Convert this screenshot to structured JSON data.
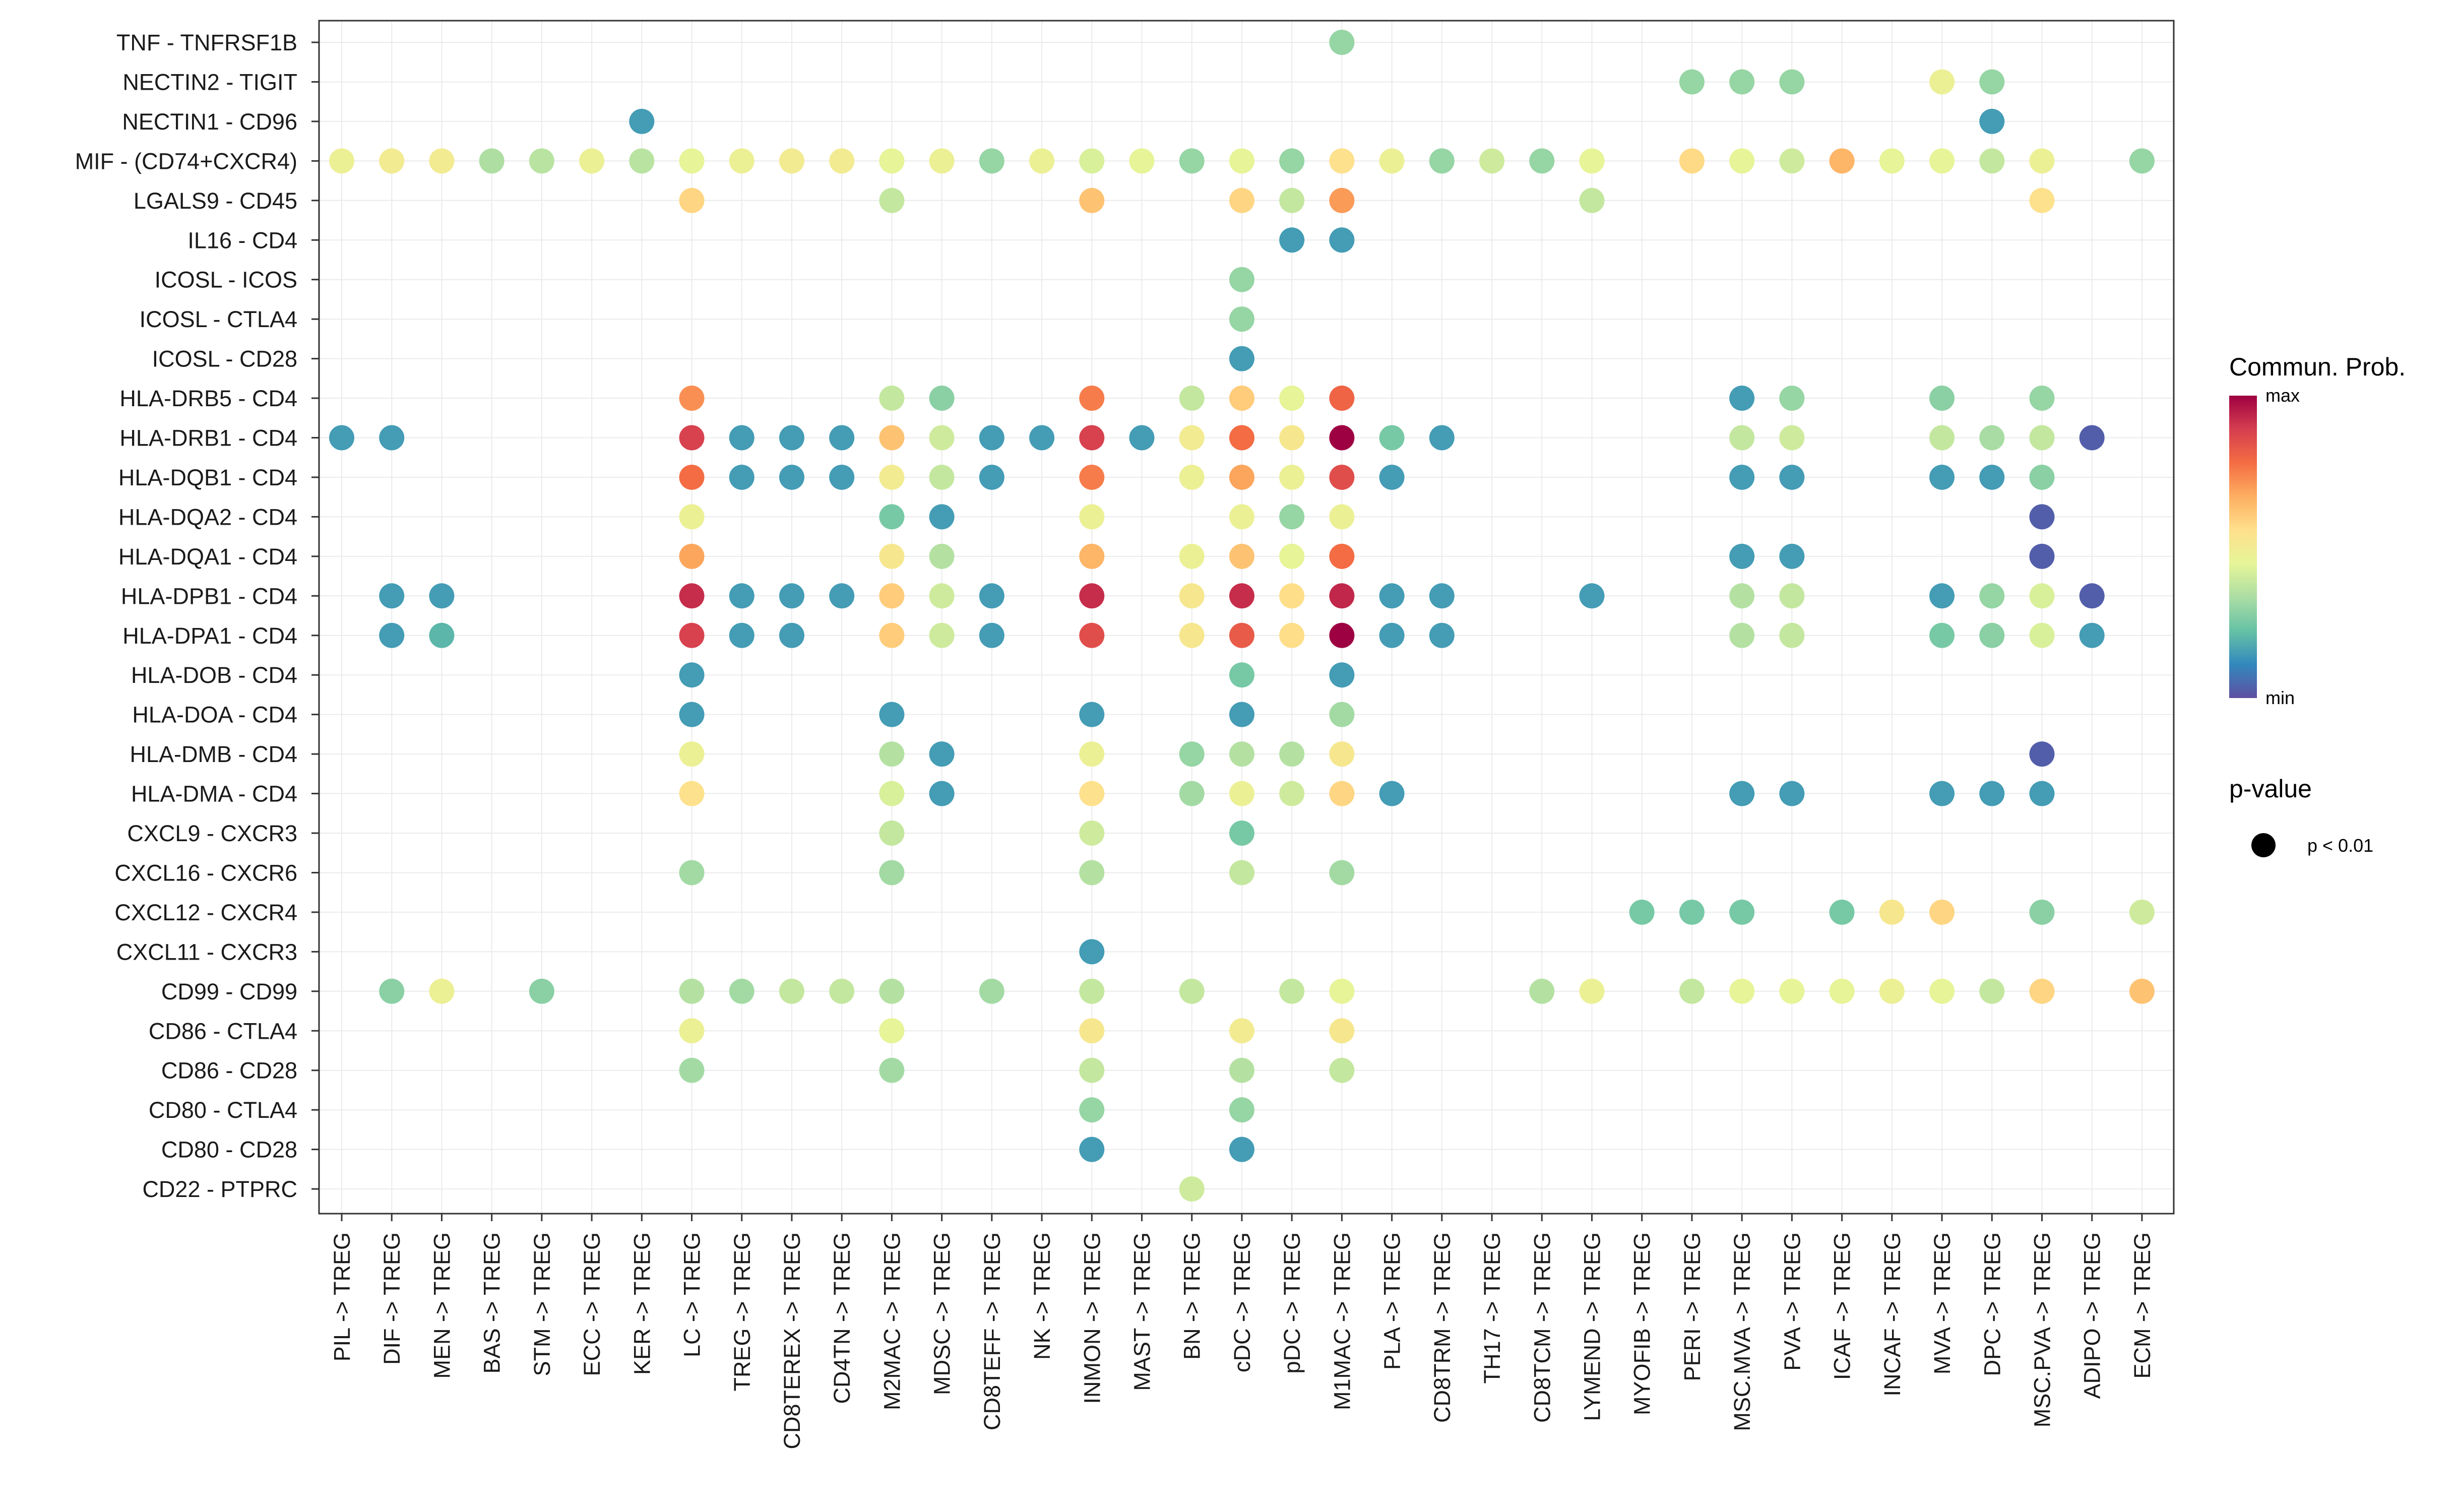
{
  "chart_data": {
    "type": "dot-plot",
    "y_labels": [
      "TNF - TNFRSF1B",
      "NECTIN2 - TIGIT",
      "NECTIN1 - CD96",
      "MIF - (CD74+CXCR4)",
      "LGALS9 - CD45",
      "IL16 - CD4",
      "ICOSL - ICOS",
      "ICOSL - CTLA4",
      "ICOSL - CD28",
      "HLA-DRB5 - CD4",
      "HLA-DRB1 - CD4",
      "HLA-DQB1 - CD4",
      "HLA-DQA2 - CD4",
      "HLA-DQA1 - CD4",
      "HLA-DPB1 - CD4",
      "HLA-DPA1 - CD4",
      "HLA-DOB - CD4",
      "HLA-DOA - CD4",
      "HLA-DMB - CD4",
      "HLA-DMA - CD4",
      "CXCL9 - CXCR3",
      "CXCL16 - CXCR6",
      "CXCL12 - CXCR4",
      "CXCL11 - CXCR3",
      "CD99 - CD99",
      "CD86 - CTLA4",
      "CD86 - CD28",
      "CD80 - CTLA4",
      "CD80 - CD28",
      "CD22 - PTPRC"
    ],
    "x_labels": [
      "PIL -> TREG",
      "DIF -> TREG",
      "MEN -> TREG",
      "BAS -> TREG",
      "STM -> TREG",
      "ECC -> TREG",
      "KER -> TREG",
      "LC -> TREG",
      "TREG -> TREG",
      "CD8TEREX -> TREG",
      "CD4TN -> TREG",
      "M2MAC -> TREG",
      "MDSC -> TREG",
      "CD8TEFF -> TREG",
      "NK -> TREG",
      "INMON -> TREG",
      "MAST -> TREG",
      "BN -> TREG",
      "cDC -> TREG",
      "pDC -> TREG",
      "M1MAC -> TREG",
      "PLA -> TREG",
      "CD8TRM -> TREG",
      "TH17 -> TREG",
      "CD8TCM -> TREG",
      "LYMEND -> TREG",
      "MYOFIB -> TREG",
      "PERI -> TREG",
      "MSC.MVA -> TREG",
      "PVA -> TREG",
      "ICAF -> TREG",
      "INCAF -> TREG",
      "MVA -> TREG",
      "DPC -> TREG",
      "MSC.PVA -> TREG",
      "ADIPO -> TREG",
      "ECM -> TREG"
    ],
    "points_note": "Each point: [x_index, y_index, relative communication probability 0 (min) .. 1 (max)]",
    "points": [
      [
        20,
        0,
        0.3
      ],
      [
        27,
        1,
        0.3
      ],
      [
        28,
        1,
        0.3
      ],
      [
        29,
        1,
        0.3
      ],
      [
        32,
        1,
        0.47
      ],
      [
        33,
        1,
        0.3
      ],
      [
        6,
        2,
        0.15
      ],
      [
        33,
        2,
        0.15
      ],
      [
        0,
        3,
        0.47
      ],
      [
        1,
        3,
        0.5
      ],
      [
        2,
        3,
        0.5
      ],
      [
        3,
        3,
        0.34
      ],
      [
        4,
        3,
        0.36
      ],
      [
        5,
        3,
        0.47
      ],
      [
        6,
        3,
        0.36
      ],
      [
        7,
        3,
        0.45
      ],
      [
        8,
        3,
        0.47
      ],
      [
        9,
        3,
        0.5
      ],
      [
        10,
        3,
        0.5
      ],
      [
        11,
        3,
        0.45
      ],
      [
        12,
        3,
        0.47
      ],
      [
        13,
        3,
        0.3
      ],
      [
        14,
        3,
        0.47
      ],
      [
        15,
        3,
        0.42
      ],
      [
        16,
        3,
        0.45
      ],
      [
        17,
        3,
        0.3
      ],
      [
        18,
        3,
        0.45
      ],
      [
        19,
        3,
        0.3
      ],
      [
        20,
        3,
        0.55
      ],
      [
        21,
        3,
        0.47
      ],
      [
        22,
        3,
        0.3
      ],
      [
        23,
        3,
        0.4
      ],
      [
        24,
        3,
        0.3
      ],
      [
        25,
        3,
        0.45
      ],
      [
        27,
        3,
        0.57
      ],
      [
        28,
        3,
        0.45
      ],
      [
        29,
        3,
        0.4
      ],
      [
        30,
        3,
        0.65
      ],
      [
        31,
        3,
        0.45
      ],
      [
        32,
        3,
        0.45
      ],
      [
        33,
        3,
        0.38
      ],
      [
        34,
        3,
        0.47
      ],
      [
        36,
        3,
        0.3
      ],
      [
        7,
        4,
        0.58
      ],
      [
        11,
        4,
        0.38
      ],
      [
        15,
        4,
        0.62
      ],
      [
        18,
        4,
        0.58
      ],
      [
        19,
        4,
        0.38
      ],
      [
        20,
        4,
        0.7
      ],
      [
        25,
        4,
        0.38
      ],
      [
        34,
        4,
        0.55
      ],
      [
        19,
        5,
        0.15
      ],
      [
        20,
        5,
        0.15
      ],
      [
        18,
        6,
        0.3
      ],
      [
        18,
        7,
        0.3
      ],
      [
        18,
        8,
        0.15
      ],
      [
        7,
        9,
        0.72
      ],
      [
        11,
        9,
        0.38
      ],
      [
        12,
        9,
        0.28
      ],
      [
        15,
        9,
        0.75
      ],
      [
        17,
        9,
        0.38
      ],
      [
        18,
        9,
        0.6
      ],
      [
        19,
        9,
        0.45
      ],
      [
        20,
        9,
        0.8
      ],
      [
        28,
        9,
        0.15
      ],
      [
        29,
        9,
        0.3
      ],
      [
        32,
        9,
        0.28
      ],
      [
        34,
        9,
        0.3
      ],
      [
        0,
        10,
        0.15
      ],
      [
        1,
        10,
        0.15
      ],
      [
        7,
        10,
        0.88
      ],
      [
        8,
        10,
        0.15
      ],
      [
        9,
        10,
        0.15
      ],
      [
        10,
        10,
        0.15
      ],
      [
        11,
        10,
        0.62
      ],
      [
        12,
        10,
        0.4
      ],
      [
        13,
        10,
        0.15
      ],
      [
        14,
        10,
        0.15
      ],
      [
        15,
        10,
        0.88
      ],
      [
        16,
        10,
        0.15
      ],
      [
        17,
        10,
        0.5
      ],
      [
        18,
        10,
        0.78
      ],
      [
        19,
        10,
        0.52
      ],
      [
        20,
        10,
        1.0
      ],
      [
        21,
        10,
        0.25
      ],
      [
        22,
        10,
        0.15
      ],
      [
        28,
        10,
        0.38
      ],
      [
        29,
        10,
        0.4
      ],
      [
        32,
        10,
        0.38
      ],
      [
        33,
        10,
        0.33
      ],
      [
        34,
        10,
        0.38
      ],
      [
        35,
        10,
        0.03
      ],
      [
        7,
        11,
        0.78
      ],
      [
        8,
        11,
        0.15
      ],
      [
        9,
        11,
        0.15
      ],
      [
        10,
        11,
        0.15
      ],
      [
        11,
        11,
        0.5
      ],
      [
        12,
        11,
        0.38
      ],
      [
        13,
        11,
        0.15
      ],
      [
        15,
        11,
        0.75
      ],
      [
        17,
        11,
        0.47
      ],
      [
        18,
        11,
        0.68
      ],
      [
        19,
        11,
        0.47
      ],
      [
        20,
        11,
        0.85
      ],
      [
        21,
        11,
        0.15
      ],
      [
        28,
        11,
        0.15
      ],
      [
        29,
        11,
        0.15
      ],
      [
        32,
        11,
        0.15
      ],
      [
        33,
        11,
        0.15
      ],
      [
        34,
        11,
        0.28
      ],
      [
        7,
        12,
        0.47
      ],
      [
        11,
        12,
        0.25
      ],
      [
        12,
        12,
        0.15
      ],
      [
        15,
        12,
        0.47
      ],
      [
        18,
        12,
        0.47
      ],
      [
        19,
        12,
        0.3
      ],
      [
        20,
        12,
        0.47
      ],
      [
        34,
        12,
        0.03
      ],
      [
        7,
        13,
        0.68
      ],
      [
        11,
        13,
        0.52
      ],
      [
        12,
        13,
        0.35
      ],
      [
        15,
        13,
        0.65
      ],
      [
        17,
        13,
        0.47
      ],
      [
        18,
        13,
        0.62
      ],
      [
        19,
        13,
        0.45
      ],
      [
        20,
        13,
        0.78
      ],
      [
        28,
        13,
        0.15
      ],
      [
        29,
        13,
        0.15
      ],
      [
        34,
        13,
        0.03
      ],
      [
        1,
        14,
        0.15
      ],
      [
        2,
        14,
        0.15
      ],
      [
        7,
        14,
        0.92
      ],
      [
        8,
        14,
        0.15
      ],
      [
        9,
        14,
        0.15
      ],
      [
        10,
        14,
        0.15
      ],
      [
        11,
        14,
        0.6
      ],
      [
        12,
        14,
        0.4
      ],
      [
        13,
        14,
        0.15
      ],
      [
        15,
        14,
        0.92
      ],
      [
        17,
        14,
        0.52
      ],
      [
        18,
        14,
        0.92
      ],
      [
        19,
        14,
        0.56
      ],
      [
        20,
        14,
        0.93
      ],
      [
        21,
        14,
        0.15
      ],
      [
        22,
        14,
        0.15
      ],
      [
        25,
        14,
        0.15
      ],
      [
        28,
        14,
        0.35
      ],
      [
        29,
        14,
        0.38
      ],
      [
        32,
        14,
        0.15
      ],
      [
        33,
        14,
        0.3
      ],
      [
        34,
        14,
        0.42
      ],
      [
        35,
        14,
        0.03
      ],
      [
        1,
        15,
        0.15
      ],
      [
        2,
        15,
        0.2
      ],
      [
        7,
        15,
        0.88
      ],
      [
        8,
        15,
        0.15
      ],
      [
        9,
        15,
        0.15
      ],
      [
        11,
        15,
        0.6
      ],
      [
        12,
        15,
        0.4
      ],
      [
        13,
        15,
        0.15
      ],
      [
        15,
        15,
        0.85
      ],
      [
        17,
        15,
        0.52
      ],
      [
        18,
        15,
        0.82
      ],
      [
        19,
        15,
        0.56
      ],
      [
        20,
        15,
        1.0
      ],
      [
        21,
        15,
        0.15
      ],
      [
        22,
        15,
        0.15
      ],
      [
        28,
        15,
        0.35
      ],
      [
        29,
        15,
        0.38
      ],
      [
        32,
        15,
        0.25
      ],
      [
        33,
        15,
        0.28
      ],
      [
        34,
        15,
        0.42
      ],
      [
        35,
        15,
        0.15
      ],
      [
        7,
        16,
        0.15
      ],
      [
        18,
        16,
        0.25
      ],
      [
        20,
        16,
        0.15
      ],
      [
        7,
        17,
        0.15
      ],
      [
        11,
        17,
        0.15
      ],
      [
        15,
        17,
        0.15
      ],
      [
        18,
        17,
        0.15
      ],
      [
        20,
        17,
        0.32
      ],
      [
        7,
        18,
        0.47
      ],
      [
        11,
        18,
        0.35
      ],
      [
        12,
        18,
        0.15
      ],
      [
        15,
        18,
        0.47
      ],
      [
        17,
        18,
        0.3
      ],
      [
        18,
        18,
        0.35
      ],
      [
        19,
        18,
        0.35
      ],
      [
        20,
        18,
        0.52
      ],
      [
        34,
        18,
        0.03
      ],
      [
        7,
        19,
        0.55
      ],
      [
        11,
        19,
        0.42
      ],
      [
        12,
        19,
        0.15
      ],
      [
        15,
        19,
        0.55
      ],
      [
        17,
        19,
        0.32
      ],
      [
        18,
        19,
        0.47
      ],
      [
        19,
        19,
        0.4
      ],
      [
        20,
        19,
        0.58
      ],
      [
        21,
        19,
        0.15
      ],
      [
        28,
        19,
        0.15
      ],
      [
        29,
        19,
        0.15
      ],
      [
        32,
        19,
        0.15
      ],
      [
        33,
        19,
        0.15
      ],
      [
        34,
        19,
        0.15
      ],
      [
        11,
        20,
        0.38
      ],
      [
        15,
        20,
        0.4
      ],
      [
        18,
        20,
        0.25
      ],
      [
        7,
        21,
        0.32
      ],
      [
        11,
        21,
        0.32
      ],
      [
        15,
        21,
        0.35
      ],
      [
        18,
        21,
        0.38
      ],
      [
        20,
        21,
        0.32
      ],
      [
        26,
        22,
        0.25
      ],
      [
        27,
        22,
        0.25
      ],
      [
        28,
        22,
        0.25
      ],
      [
        30,
        22,
        0.25
      ],
      [
        31,
        22,
        0.52
      ],
      [
        32,
        22,
        0.58
      ],
      [
        34,
        22,
        0.28
      ],
      [
        36,
        22,
        0.4
      ],
      [
        15,
        23,
        0.15
      ],
      [
        1,
        24,
        0.28
      ],
      [
        2,
        24,
        0.47
      ],
      [
        4,
        24,
        0.28
      ],
      [
        7,
        24,
        0.35
      ],
      [
        8,
        24,
        0.32
      ],
      [
        9,
        24,
        0.38
      ],
      [
        10,
        24,
        0.38
      ],
      [
        11,
        24,
        0.35
      ],
      [
        13,
        24,
        0.32
      ],
      [
        15,
        24,
        0.38
      ],
      [
        17,
        24,
        0.38
      ],
      [
        19,
        24,
        0.38
      ],
      [
        20,
        24,
        0.45
      ],
      [
        24,
        24,
        0.35
      ],
      [
        25,
        24,
        0.47
      ],
      [
        27,
        24,
        0.38
      ],
      [
        28,
        24,
        0.45
      ],
      [
        29,
        24,
        0.45
      ],
      [
        30,
        24,
        0.45
      ],
      [
        31,
        24,
        0.47
      ],
      [
        32,
        24,
        0.45
      ],
      [
        33,
        24,
        0.38
      ],
      [
        34,
        24,
        0.58
      ],
      [
        36,
        24,
        0.62
      ],
      [
        7,
        25,
        0.47
      ],
      [
        11,
        25,
        0.45
      ],
      [
        15,
        25,
        0.52
      ],
      [
        18,
        25,
        0.5
      ],
      [
        20,
        25,
        0.52
      ],
      [
        7,
        26,
        0.32
      ],
      [
        11,
        26,
        0.32
      ],
      [
        15,
        26,
        0.38
      ],
      [
        18,
        26,
        0.35
      ],
      [
        20,
        26,
        0.38
      ],
      [
        15,
        27,
        0.3
      ],
      [
        18,
        27,
        0.3
      ],
      [
        15,
        28,
        0.15
      ],
      [
        18,
        28,
        0.15
      ],
      [
        17,
        29,
        0.4
      ]
    ],
    "legend": {
      "color_title": "Commun. Prob.",
      "color_max_label": "max",
      "color_min_label": "min",
      "colorscale": [
        "#5e4fa2",
        "#3288bd",
        "#66c2a5",
        "#abdda4",
        "#e6f598",
        "#fee08b",
        "#fdae61",
        "#f46d43",
        "#d53e4f",
        "#9e0142"
      ],
      "size_title": "p-value",
      "size_label": "p < 0.01"
    }
  }
}
